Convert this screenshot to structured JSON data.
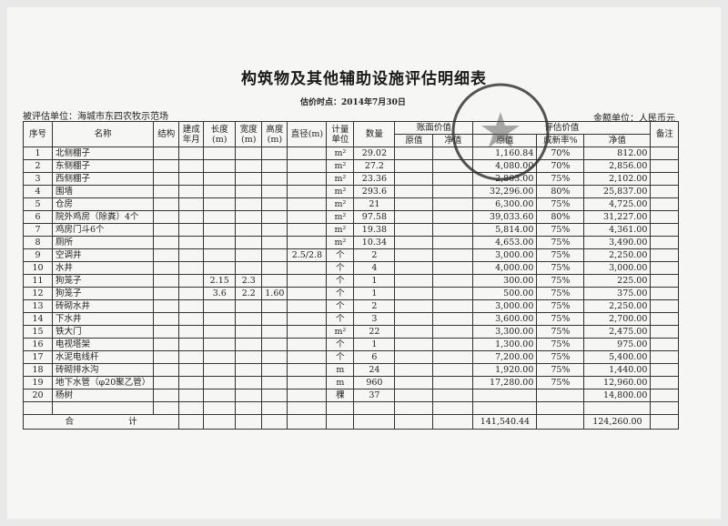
{
  "title": "构筑物及其他辅助设施评估明细表",
  "valuation_date": "估价时点：2014年7月30日",
  "entity": "被评估单位：海城市东四农牧示范场",
  "currency_unit": "金额单位：人民币元",
  "headers": {
    "no": "序号",
    "name": "名称",
    "structure": "结构",
    "built": "建成年月",
    "length": "长度(m)",
    "width": "宽度(m)",
    "height": "高度(m)",
    "diameter": "直径(m)",
    "unit": "计量单位",
    "quantity": "数量",
    "book_value": "账面价值",
    "book_original": "原值",
    "book_net": "净值",
    "appraised_value": "评估价值",
    "appr_original": "原值",
    "appr_rate": "成新率%",
    "appr_net": "净值",
    "remark": "备注"
  },
  "rows": [
    {
      "no": "1",
      "name": "北侧棚子",
      "length": "",
      "width": "",
      "height": "",
      "diameter": "",
      "unit": "m²",
      "quantity": "29.02",
      "appr_original": "1,160.84",
      "rate": "70%",
      "appr_net": "812.00"
    },
    {
      "no": "2",
      "name": "东侧棚子",
      "length": "",
      "width": "",
      "height": "",
      "diameter": "",
      "unit": "m²",
      "quantity": "27.2",
      "appr_original": "4,080.00",
      "rate": "70%",
      "appr_net": "2,856.00"
    },
    {
      "no": "3",
      "name": "西侧棚子",
      "length": "",
      "width": "",
      "height": "",
      "diameter": "",
      "unit": "m²",
      "quantity": "23.36",
      "appr_original": "2,803.00",
      "rate": "75%",
      "appr_net": "2,102.00"
    },
    {
      "no": "4",
      "name": "围墙",
      "length": "",
      "width": "",
      "height": "",
      "diameter": "",
      "unit": "m²",
      "quantity": "293.6",
      "appr_original": "32,296.00",
      "rate": "80%",
      "appr_net": "25,837.00"
    },
    {
      "no": "5",
      "name": "仓房",
      "length": "",
      "width": "",
      "height": "",
      "diameter": "",
      "unit": "m²",
      "quantity": "21",
      "appr_original": "6,300.00",
      "rate": "75%",
      "appr_net": "4,725.00"
    },
    {
      "no": "6",
      "name": "院外鸡房（除粪）4个",
      "length": "",
      "width": "",
      "height": "",
      "diameter": "",
      "unit": "m²",
      "quantity": "97.58",
      "appr_original": "39,033.60",
      "rate": "80%",
      "appr_net": "31,227.00"
    },
    {
      "no": "7",
      "name": "鸡房门斗6个",
      "length": "",
      "width": "",
      "height": "",
      "diameter": "",
      "unit": "m²",
      "quantity": "19.38",
      "appr_original": "5,814.00",
      "rate": "75%",
      "appr_net": "4,361.00"
    },
    {
      "no": "8",
      "name": "厕所",
      "length": "",
      "width": "",
      "height": "",
      "diameter": "",
      "unit": "m²",
      "quantity": "10.34",
      "appr_original": "4,653.00",
      "rate": "75%",
      "appr_net": "3,490.00"
    },
    {
      "no": "9",
      "name": "空调井",
      "length": "",
      "width": "",
      "height": "",
      "diameter": "2.5/2.8",
      "unit": "个",
      "quantity": "2",
      "appr_original": "3,000.00",
      "rate": "75%",
      "appr_net": "2,250.00"
    },
    {
      "no": "10",
      "name": "水井",
      "length": "",
      "width": "",
      "height": "",
      "diameter": "",
      "unit": "个",
      "quantity": "4",
      "appr_original": "4,000.00",
      "rate": "75%",
      "appr_net": "3,000.00"
    },
    {
      "no": "11",
      "name": "狗笼子",
      "length": "2.15",
      "width": "2.3",
      "height": "",
      "diameter": "",
      "unit": "个",
      "quantity": "1",
      "appr_original": "300.00",
      "rate": "75%",
      "appr_net": "225.00"
    },
    {
      "no": "12",
      "name": "狗笼子",
      "length": "3.6",
      "width": "2.2",
      "height": "1.60",
      "diameter": "",
      "unit": "个",
      "quantity": "1",
      "appr_original": "500.00",
      "rate": "75%",
      "appr_net": "375.00"
    },
    {
      "no": "13",
      "name": "砖砌水井",
      "length": "",
      "width": "",
      "height": "",
      "diameter": "",
      "unit": "个",
      "quantity": "2",
      "appr_original": "3,000.00",
      "rate": "75%",
      "appr_net": "2,250.00"
    },
    {
      "no": "14",
      "name": "下水井",
      "length": "",
      "width": "",
      "height": "",
      "diameter": "",
      "unit": "个",
      "quantity": "3",
      "appr_original": "3,600.00",
      "rate": "75%",
      "appr_net": "2,700.00"
    },
    {
      "no": "15",
      "name": "铁大门",
      "length": "",
      "width": "",
      "height": "",
      "diameter": "",
      "unit": "m²",
      "quantity": "22",
      "appr_original": "3,300.00",
      "rate": "75%",
      "appr_net": "2,475.00"
    },
    {
      "no": "16",
      "name": "电视塔架",
      "length": "",
      "width": "",
      "height": "",
      "diameter": "",
      "unit": "个",
      "quantity": "1",
      "appr_original": "1,300.00",
      "rate": "75%",
      "appr_net": "975.00"
    },
    {
      "no": "17",
      "name": "水泥电线杆",
      "length": "",
      "width": "",
      "height": "",
      "diameter": "",
      "unit": "个",
      "quantity": "6",
      "appr_original": "7,200.00",
      "rate": "75%",
      "appr_net": "5,400.00"
    },
    {
      "no": "18",
      "name": "砖砌排水沟",
      "length": "",
      "width": "",
      "height": "",
      "diameter": "",
      "unit": "m",
      "quantity": "24",
      "appr_original": "1,920.00",
      "rate": "75%",
      "appr_net": "1,440.00"
    },
    {
      "no": "19",
      "name": "地下水管（φ20聚乙管）",
      "length": "",
      "width": "",
      "height": "",
      "diameter": "",
      "unit": "m",
      "quantity": "960",
      "appr_original": "17,280.00",
      "rate": "75%",
      "appr_net": "12,960.00"
    },
    {
      "no": "20",
      "name": "杨树",
      "length": "",
      "width": "",
      "height": "",
      "diameter": "",
      "unit": "棵",
      "quantity": "37",
      "appr_original": "",
      "rate": "",
      "appr_net": "14,800.00"
    }
  ],
  "total": {
    "label_1": "合",
    "label_2": "计",
    "appr_original": "141,540.44",
    "appr_net": "124,260.00"
  },
  "stamp": {
    "text": "海城市农村信用合作联社",
    "color": "#2a2a2a"
  }
}
